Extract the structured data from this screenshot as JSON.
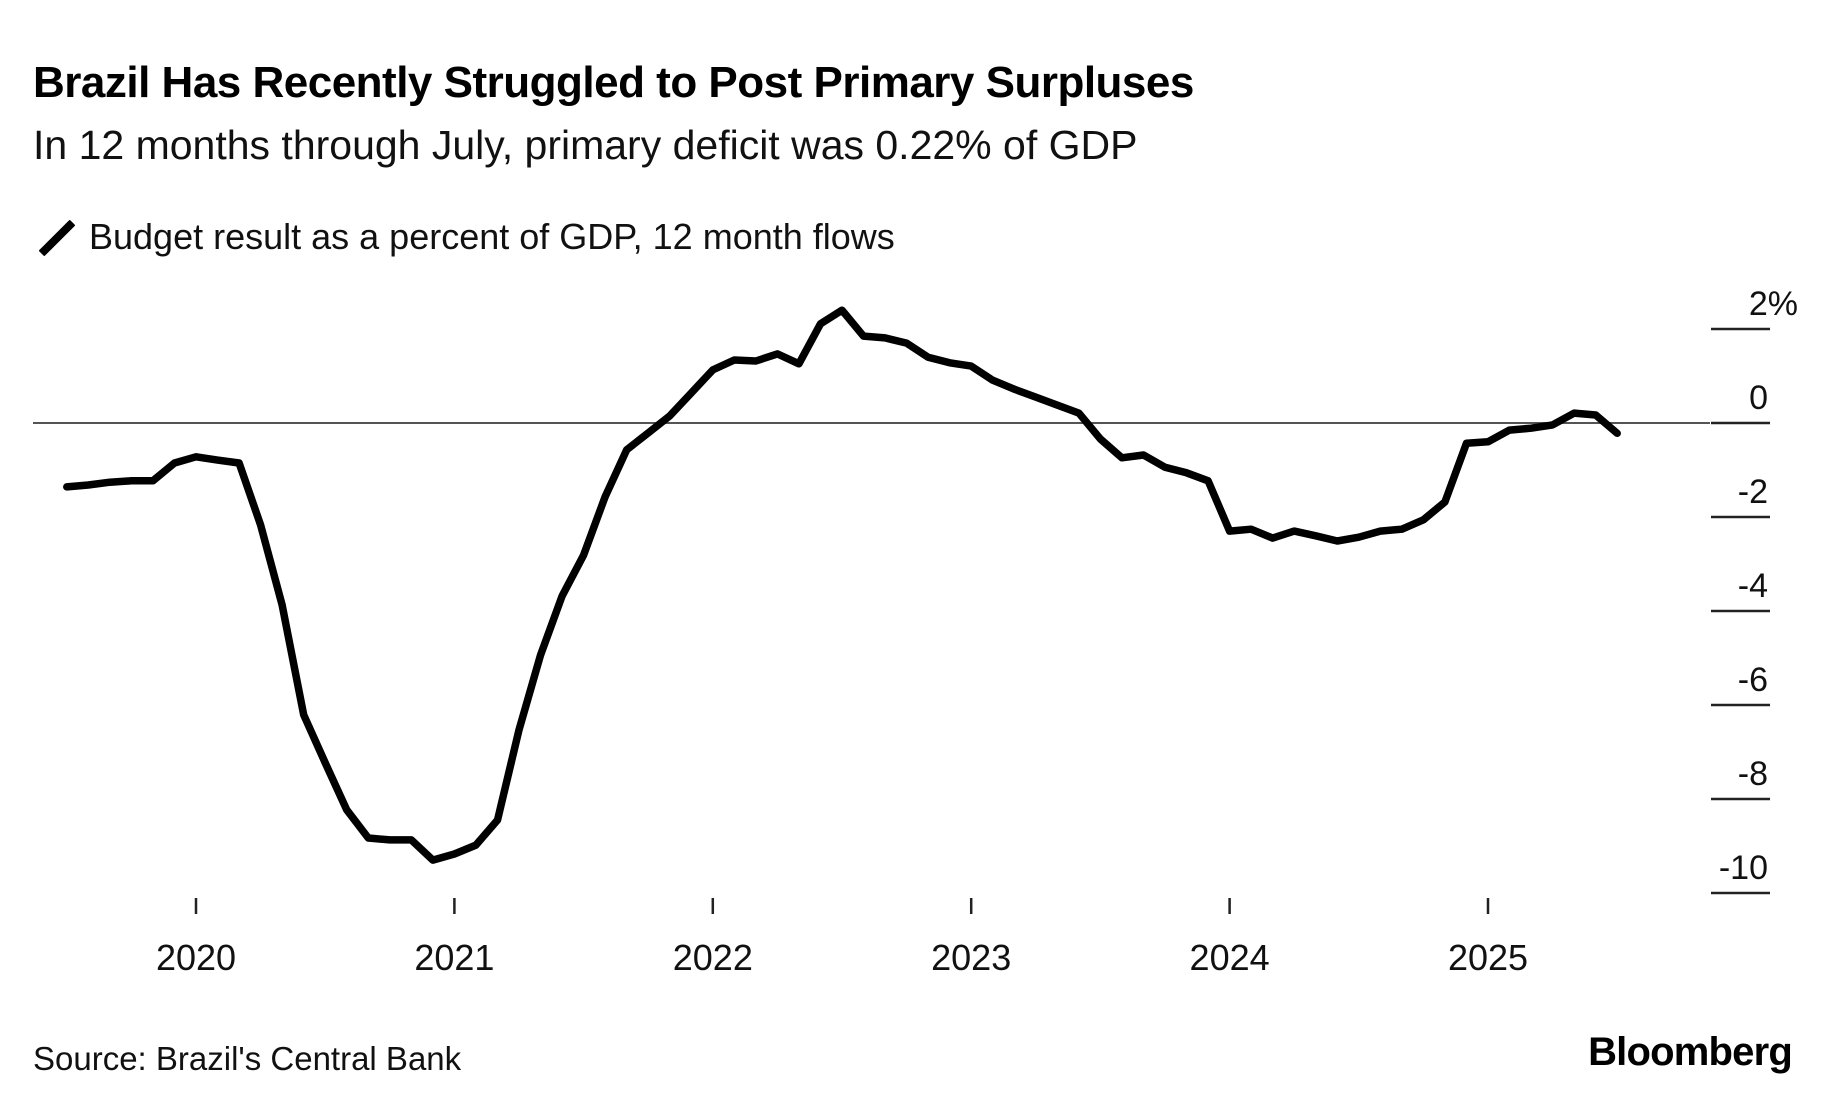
{
  "header": {
    "title": "Brazil Has Recently Struggled to Post Primary Surpluses",
    "subtitle": "In 12 months through July, primary deficit was 0.22% of GDP"
  },
  "footer": {
    "source": "Source: Brazil's Central Bank",
    "brand": "Bloomberg"
  },
  "chart_data": {
    "type": "line",
    "title": "Brazil Has Recently Struggled to Post Primary Surpluses",
    "subtitle": "In 12 months through July, primary deficit was 0.22% of GDP",
    "xlabel": "",
    "ylabel": "",
    "y_axis_position": "right",
    "ylim": [
      -10,
      2
    ],
    "yticks": [
      2,
      0,
      -2,
      -4,
      -6,
      -8,
      -10
    ],
    "ytick_labels": [
      "2%",
      "0",
      "-2",
      "-4",
      "-6",
      "-8",
      "-10"
    ],
    "xticks": [
      "2020",
      "2021",
      "2022",
      "2023",
      "2024",
      "2025"
    ],
    "zero_line": true,
    "grid": false,
    "legend": {
      "position": "top-left",
      "entries": [
        "Budget result as a percent of GDP, 12 month flows"
      ]
    },
    "series": [
      {
        "name": "Budget result as a percent of GDP, 12 month flows",
        "color": "#000000",
        "x": [
          "2019-07",
          "2019-08",
          "2019-09",
          "2019-10",
          "2019-11",
          "2019-12",
          "2020-01",
          "2020-02",
          "2020-03",
          "2020-04",
          "2020-05",
          "2020-06",
          "2020-07",
          "2020-08",
          "2020-09",
          "2020-10",
          "2020-11",
          "2020-12",
          "2021-01",
          "2021-02",
          "2021-03",
          "2021-04",
          "2021-05",
          "2021-06",
          "2021-07",
          "2021-08",
          "2021-09",
          "2021-10",
          "2021-11",
          "2021-12",
          "2022-01",
          "2022-02",
          "2022-03",
          "2022-04",
          "2022-05",
          "2022-06",
          "2022-07",
          "2022-08",
          "2022-09",
          "2022-10",
          "2022-11",
          "2022-12",
          "2023-01",
          "2023-02",
          "2023-03",
          "2023-04",
          "2023-05",
          "2023-06",
          "2023-07",
          "2023-08",
          "2023-09",
          "2023-10",
          "2023-11",
          "2023-12",
          "2024-01",
          "2024-02",
          "2024-03",
          "2024-04",
          "2024-05",
          "2024-06",
          "2024-07",
          "2024-08",
          "2024-09",
          "2024-10",
          "2024-11",
          "2024-12",
          "2025-01",
          "2025-02",
          "2025-03",
          "2025-04",
          "2025-05",
          "2025-06",
          "2025-07"
        ],
        "values": [
          -1.36,
          -1.32,
          -1.26,
          -1.23,
          -1.23,
          -0.85,
          -0.72,
          -0.79,
          -0.85,
          -2.17,
          -3.87,
          -6.21,
          -7.23,
          -8.23,
          -8.83,
          -8.87,
          -8.87,
          -9.3,
          -9.17,
          -8.98,
          -8.45,
          -6.53,
          -4.94,
          -3.68,
          -2.81,
          -1.57,
          -0.57,
          -0.21,
          0.15,
          0.64,
          1.13,
          1.34,
          1.32,
          1.47,
          1.26,
          2.11,
          2.4,
          1.85,
          1.81,
          1.7,
          1.4,
          1.28,
          1.21,
          0.91,
          0.72,
          0.55,
          0.38,
          0.21,
          -0.34,
          -0.74,
          -0.68,
          -0.94,
          -1.06,
          -1.23,
          -2.3,
          -2.26,
          -2.45,
          -2.3,
          -2.4,
          -2.51,
          -2.43,
          -2.3,
          -2.26,
          -2.06,
          -1.68,
          -0.43,
          -0.4,
          -0.15,
          -0.11,
          -0.04,
          0.21,
          0.17,
          -0.22
        ]
      }
    ]
  }
}
